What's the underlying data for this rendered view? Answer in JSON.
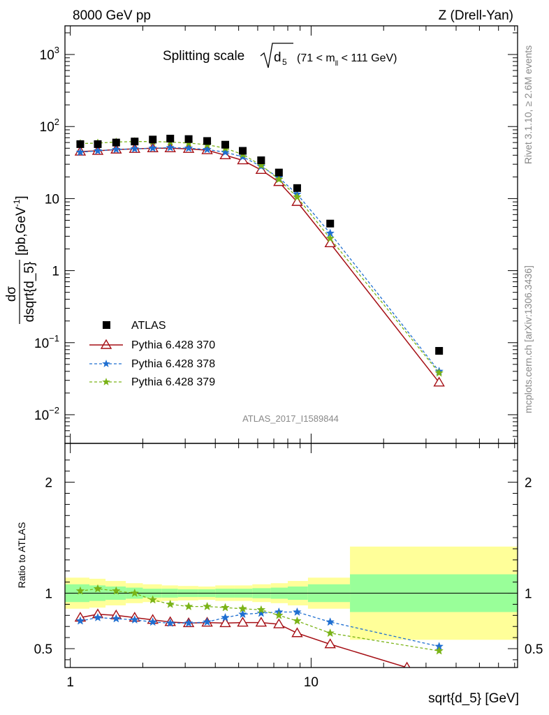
{
  "header": {
    "left": "8000 GeV pp",
    "right": "Z (Drell-Yan)"
  },
  "side_text": {
    "rivet": "Rivet 3.1.10, ≥ 2.6M events",
    "mcplots": "mcplots.cern.ch [arXiv:1306.3436]"
  },
  "title": {
    "prefix": "Splitting scale",
    "sqrt_arg": "d",
    "sqrt_sub": "5",
    "range_pre": "(71 < m",
    "range_sub": "ll",
    "range_post": " < 111 GeV)"
  },
  "analysis_id": "ATLAS_2017_I1589844",
  "ylabel_top": {
    "num": "dσ",
    "den": "dsqrt{d_5}",
    "unit": "[pb,GeV",
    "unit_exp": "-1",
    "unit_close": "]"
  },
  "ylabel_bottom": "Ratio to ATLAS",
  "xlabel": "sqrt{d_5} [GeV]",
  "colors": {
    "atlas": "#000000",
    "p370": "#a50f15",
    "p378": "#1f6fd1",
    "p379": "#7ab317",
    "band_inner": "#99ff99",
    "band_outer": "#ffff99"
  },
  "chart_data": [
    {
      "type": "line",
      "panel": "main",
      "xscale": "log",
      "yscale": "log",
      "xlim": [
        0.95,
        72
      ],
      "ylim": [
        0.004,
        2500
      ],
      "x_ticks": [
        {
          "value": 1,
          "label": "1"
        },
        {
          "value": 10,
          "label": "10"
        }
      ],
      "y_ticks": [
        {
          "value": 0.01,
          "base": "10",
          "exp": "−2"
        },
        {
          "value": 0.1,
          "base": "10",
          "exp": "−1"
        },
        {
          "value": 1,
          "base": "1",
          "exp": ""
        },
        {
          "value": 10,
          "base": "10",
          "exp": ""
        },
        {
          "value": 100,
          "base": "10",
          "exp": "2"
        },
        {
          "value": 1000,
          "base": "10",
          "exp": "3"
        }
      ],
      "legend_position": "lower-left",
      "series": [
        {
          "name": "ATLAS",
          "marker": "square",
          "color": "#000000",
          "points": [
            [
              1.1,
              57
            ],
            [
              1.3,
              57
            ],
            [
              1.55,
              60
            ],
            [
              1.85,
              62
            ],
            [
              2.2,
              66
            ],
            [
              2.6,
              68
            ],
            [
              3.1,
              67
            ],
            [
              3.7,
              63
            ],
            [
              4.4,
              56
            ],
            [
              5.2,
              46
            ],
            [
              6.2,
              34
            ],
            [
              7.35,
              23
            ],
            [
              8.75,
              14
            ],
            [
              12,
              4.5
            ],
            [
              34,
              0.077
            ]
          ]
        },
        {
          "name": "Pythia 6.428 370",
          "marker": "triangle-open",
          "line": "solid",
          "color": "#a50f15",
          "points": [
            [
              1.1,
              45
            ],
            [
              1.3,
              46
            ],
            [
              1.55,
              48
            ],
            [
              1.85,
              49
            ],
            [
              2.2,
              50
            ],
            [
              2.6,
              50
            ],
            [
              3.1,
              49
            ],
            [
              3.7,
              47
            ],
            [
              4.4,
              40
            ],
            [
              5.2,
              34
            ],
            [
              6.2,
              25
            ],
            [
              7.35,
              17
            ],
            [
              8.75,
              9
            ],
            [
              12,
              2.4
            ],
            [
              34,
              0.028
            ]
          ]
        },
        {
          "name": "Pythia 6.428 378",
          "marker": "star",
          "line": "dashed",
          "color": "#1f6fd1",
          "points": [
            [
              1.1,
              44
            ],
            [
              1.3,
              46
            ],
            [
              1.55,
              48
            ],
            [
              1.85,
              49
            ],
            [
              2.2,
              50
            ],
            [
              2.6,
              51
            ],
            [
              3.1,
              50
            ],
            [
              3.7,
              48
            ],
            [
              4.4,
              44
            ],
            [
              5.2,
              38
            ],
            [
              6.2,
              28
            ],
            [
              7.35,
              19.5
            ],
            [
              8.75,
              11.5
            ],
            [
              12,
              3.3
            ],
            [
              34,
              0.04
            ]
          ]
        },
        {
          "name": "Pythia 6.428 379",
          "marker": "star",
          "line": "dashed",
          "color": "#7ab317",
          "points": [
            [
              1.1,
              58
            ],
            [
              1.3,
              59
            ],
            [
              1.55,
              61
            ],
            [
              1.85,
              62
            ],
            [
              2.2,
              62
            ],
            [
              2.6,
              61
            ],
            [
              3.1,
              59
            ],
            [
              3.7,
              56
            ],
            [
              4.4,
              50
            ],
            [
              5.2,
              41
            ],
            [
              6.2,
              29
            ],
            [
              7.35,
              18.5
            ],
            [
              8.75,
              10.5
            ],
            [
              12,
              2.8
            ],
            [
              34,
              0.038
            ]
          ]
        }
      ]
    },
    {
      "type": "line",
      "panel": "ratio",
      "xscale": "log",
      "yscale": "linear",
      "xlim": [
        0.95,
        72
      ],
      "ylim": [
        0.33,
        2.35
      ],
      "y_ticks": [
        {
          "value": 0.5,
          "label": "0.5"
        },
        {
          "value": 1,
          "label": "1"
        },
        {
          "value": 2,
          "label": "2"
        }
      ],
      "bands": {
        "edges": [
          0.95,
          1.2,
          1.4,
          1.7,
          2.0,
          2.4,
          2.8,
          3.4,
          4.0,
          4.8,
          5.7,
          6.8,
          8.0,
          9.7,
          14.5,
          72
        ],
        "inner": [
          [
            0.92,
            1.08
          ],
          [
            0.93,
            1.07
          ],
          [
            0.94,
            1.06
          ],
          [
            0.95,
            1.05
          ],
          [
            0.96,
            1.04
          ],
          [
            0.96,
            1.04
          ],
          [
            0.965,
            1.035
          ],
          [
            0.965,
            1.035
          ],
          [
            0.96,
            1.04
          ],
          [
            0.96,
            1.04
          ],
          [
            0.955,
            1.045
          ],
          [
            0.95,
            1.05
          ],
          [
            0.94,
            1.06
          ],
          [
            0.92,
            1.08
          ],
          [
            0.83,
            1.17
          ]
        ],
        "outer": [
          [
            0.86,
            1.14
          ],
          [
            0.87,
            1.13
          ],
          [
            0.89,
            1.11
          ],
          [
            0.91,
            1.09
          ],
          [
            0.92,
            1.08
          ],
          [
            0.93,
            1.07
          ],
          [
            0.935,
            1.065
          ],
          [
            0.94,
            1.06
          ],
          [
            0.93,
            1.07
          ],
          [
            0.93,
            1.07
          ],
          [
            0.92,
            1.08
          ],
          [
            0.91,
            1.09
          ],
          [
            0.89,
            1.11
          ],
          [
            0.86,
            1.14
          ],
          [
            0.58,
            1.42
          ]
        ]
      },
      "series": [
        {
          "name": "Pythia 6.428 370",
          "marker": "triangle-open",
          "line": "solid",
          "color": "#a50f15",
          "points": [
            [
              1.1,
              0.78
            ],
            [
              1.3,
              0.81
            ],
            [
              1.55,
              0.8
            ],
            [
              1.85,
              0.78
            ],
            [
              2.2,
              0.76
            ],
            [
              2.6,
              0.74
            ],
            [
              3.1,
              0.73
            ],
            [
              3.7,
              0.735
            ],
            [
              4.4,
              0.73
            ],
            [
              5.2,
              0.735
            ],
            [
              6.2,
              0.735
            ],
            [
              7.35,
              0.72
            ],
            [
              8.75,
              0.64
            ],
            [
              12,
              0.54
            ],
            [
              25,
              0.33
            ]
          ]
        },
        {
          "name": "Pythia 6.428 378",
          "marker": "star",
          "line": "dashed",
          "color": "#1f6fd1",
          "points": [
            [
              1.1,
              0.75
            ],
            [
              1.3,
              0.78
            ],
            [
              1.55,
              0.77
            ],
            [
              1.85,
              0.76
            ],
            [
              2.2,
              0.74
            ],
            [
              2.6,
              0.73
            ],
            [
              3.1,
              0.73
            ],
            [
              3.7,
              0.74
            ],
            [
              4.4,
              0.78
            ],
            [
              5.2,
              0.81
            ],
            [
              6.2,
              0.82
            ],
            [
              7.35,
              0.83
            ],
            [
              8.75,
              0.83
            ],
            [
              12,
              0.74
            ],
            [
              34,
              0.52
            ]
          ]
        },
        {
          "name": "Pythia 6.428 379",
          "marker": "star",
          "line": "dashed",
          "color": "#7ab317",
          "points": [
            [
              1.1,
              1.02
            ],
            [
              1.3,
              1.04
            ],
            [
              1.55,
              1.02
            ],
            [
              1.85,
              1.0
            ],
            [
              2.2,
              0.94
            ],
            [
              2.6,
              0.9
            ],
            [
              3.1,
              0.88
            ],
            [
              3.7,
              0.88
            ],
            [
              4.4,
              0.87
            ],
            [
              5.2,
              0.86
            ],
            [
              6.2,
              0.85
            ],
            [
              7.35,
              0.8
            ],
            [
              8.75,
              0.75
            ],
            [
              12,
              0.64
            ],
            [
              34,
              0.48
            ]
          ]
        }
      ]
    }
  ]
}
